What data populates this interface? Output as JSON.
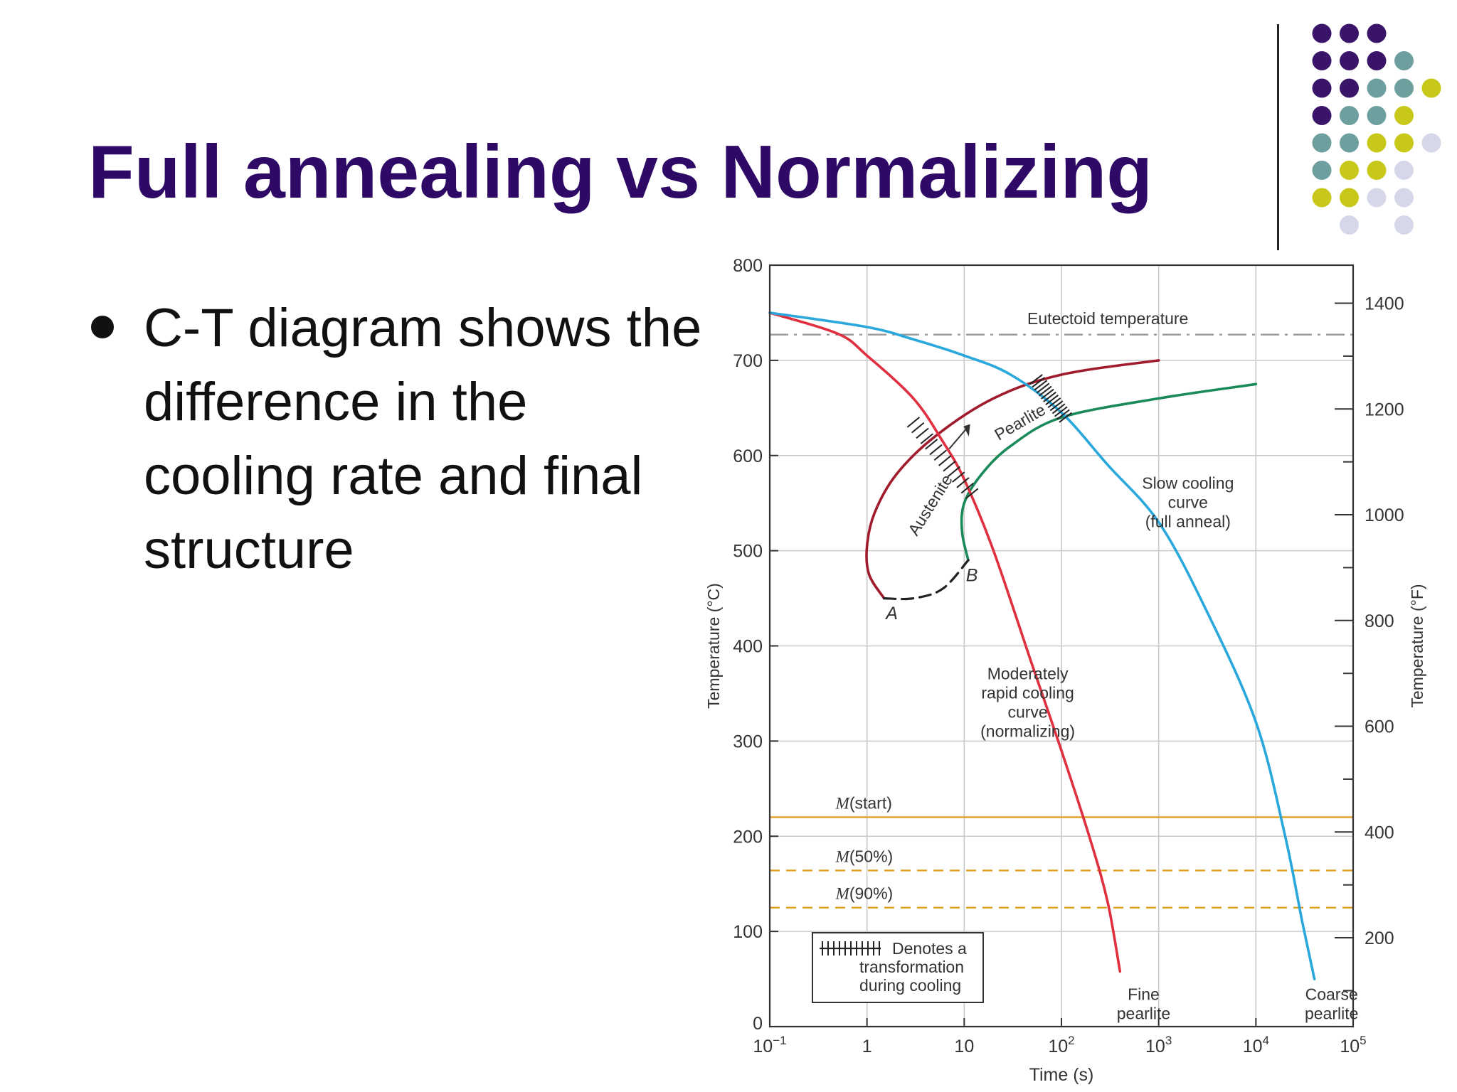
{
  "slide": {
    "title": "Full annealing vs Normalizing",
    "bullet": "C-T diagram shows the difference in the cooling rate and final structure"
  },
  "decor": {
    "dot_colors": {
      "purple": "#3a1468",
      "teal": "#6d9f9f",
      "yellow": "#c8c81a",
      "lavender": "#d7d7ea"
    },
    "dot_rows": [
      [
        "purple",
        "purple",
        "purple"
      ],
      [
        "purple",
        "purple",
        "purple",
        "teal"
      ],
      [
        "purple",
        "purple",
        "teal",
        "teal",
        "yellow"
      ],
      [
        "purple",
        "teal",
        "teal",
        "yellow"
      ],
      [
        "teal",
        "teal",
        "yellow",
        "yellow",
        "lavender"
      ],
      [
        "teal",
        "yellow",
        "yellow",
        "lavender"
      ],
      [
        "yellow",
        "yellow",
        "lavender",
        "lavender"
      ],
      [
        "lavender",
        "lavender"
      ]
    ]
  },
  "chart_data": {
    "type": "line",
    "xlabel": "Time (s)",
    "ylabel": "Temperature (°C)",
    "y2label": "Temperature (°F)",
    "x_scale": "log",
    "xlim": [
      0.1,
      100000
    ],
    "ylim": [
      0,
      800
    ],
    "x_ticks": [
      0.1,
      1,
      10,
      100,
      1000,
      10000,
      100000
    ],
    "x_tick_labels": [
      {
        "base": "10",
        "exp": "−1"
      },
      {
        "base": "1",
        "exp": ""
      },
      {
        "base": "10",
        "exp": ""
      },
      {
        "base": "10",
        "exp": "2"
      },
      {
        "base": "10",
        "exp": "3"
      },
      {
        "base": "10",
        "exp": "4"
      },
      {
        "base": "10",
        "exp": "5"
      }
    ],
    "y_ticks": [
      0,
      100,
      200,
      300,
      400,
      500,
      600,
      700,
      800
    ],
    "y_tick_labels": [
      "0",
      "100",
      "200",
      "300",
      "400",
      "500",
      "600",
      "700",
      "800"
    ],
    "y2_ticks_F": [
      200,
      400,
      600,
      800,
      1000,
      1200,
      1400
    ],
    "y2_tick_labels": [
      "200",
      "400",
      "600",
      "800",
      "1000",
      "1200",
      "1400"
    ],
    "grid": true,
    "horizontal_lines": [
      {
        "label": "Eutectoid temperature",
        "y": 727,
        "style": "dash-dot",
        "color": "#9a9a9a"
      },
      {
        "label_italic": "M",
        "label_rest": "(start)",
        "y": 220,
        "style": "solid",
        "color": "#e0a020"
      },
      {
        "label_italic": "M",
        "label_rest": "(50%)",
        "y": 164,
        "style": "dashed",
        "color": "#e0a020"
      },
      {
        "label_italic": "M",
        "label_rest": "(90%)",
        "y": 125,
        "style": "dashed",
        "color": "#e0a020"
      }
    ],
    "series": [
      {
        "role": "transformation start",
        "color": "#a01c2c",
        "points": [
          [
            1000,
            700
          ],
          [
            100,
            685
          ],
          [
            20,
            660
          ],
          [
            5,
            620
          ],
          [
            2,
            580
          ],
          [
            1.2,
            540
          ],
          [
            1.0,
            505
          ],
          [
            1.05,
            475
          ],
          [
            1.5,
            450
          ]
        ]
      },
      {
        "role": "transformation finish",
        "color": "#1a8a5a",
        "points": [
          [
            10000,
            675
          ],
          [
            1000,
            660
          ],
          [
            100,
            640
          ],
          [
            30,
            610
          ],
          [
            15,
            580
          ],
          [
            10,
            550
          ],
          [
            9.5,
            520
          ],
          [
            11,
            490
          ]
        ]
      },
      {
        "role": "A-B connector",
        "color": "#222222",
        "style": "dashed",
        "points": [
          [
            1.5,
            450
          ],
          [
            3,
            450
          ],
          [
            6,
            460
          ],
          [
            11,
            490
          ]
        ]
      },
      {
        "role": "moderately rapid cooling (normalizing)",
        "color": "#e03040",
        "points": [
          [
            0.1,
            750
          ],
          [
            0.5,
            728
          ],
          [
            1,
            705
          ],
          [
            3,
            660
          ],
          [
            6,
            615
          ],
          [
            10,
            575
          ],
          [
            20,
            500
          ],
          [
            50,
            380
          ],
          [
            100,
            290
          ],
          [
            200,
            195
          ],
          [
            300,
            130
          ],
          [
            400,
            58
          ]
        ]
      },
      {
        "role": "slow cooling (full anneal)",
        "color": "#2aa8dc",
        "points": [
          [
            0.1,
            750
          ],
          [
            1,
            735
          ],
          [
            3,
            722
          ],
          [
            10,
            705
          ],
          [
            30,
            685
          ],
          [
            100,
            645
          ],
          [
            300,
            590
          ],
          [
            1000,
            530
          ],
          [
            3000,
            440
          ],
          [
            10000,
            320
          ],
          [
            20000,
            200
          ],
          [
            30000,
            110
          ],
          [
            40000,
            50
          ]
        ]
      }
    ],
    "transformation_marks": [
      {
        "from": [
          3,
          635
        ],
        "to": [
          12,
          560
        ]
      },
      {
        "from": [
          55,
          680
        ],
        "to": [
          110,
          640
        ]
      }
    ],
    "annotations": [
      {
        "text": "Eutectoid temperature",
        "x": 300,
        "y": 738
      },
      {
        "lines": [
          "Slow cooling",
          "curve",
          "(full anneal)"
        ],
        "x": 2000,
        "y": 565
      },
      {
        "lines": [
          "Moderately",
          "rapid cooling",
          "curve",
          "(normalizing)"
        ],
        "x": 45,
        "y": 365
      },
      {
        "lines": [
          "Fine",
          "pearlite"
        ],
        "x": 700,
        "y": 28
      },
      {
        "lines": [
          "Coarse",
          "pearlite"
        ],
        "x": 60000,
        "y": 28
      },
      {
        "text": "Austenite",
        "x": 5,
        "y": 545
      },
      {
        "text": "Pearlite",
        "x": 40,
        "y": 630
      },
      {
        "text": "A",
        "x": 1.8,
        "y": 428
      },
      {
        "text": "B",
        "x": 12,
        "y": 468
      }
    ],
    "legend": {
      "placement": "bottom-left",
      "lines": [
        "Denotes a",
        "transformation",
        "during cooling"
      ]
    }
  }
}
